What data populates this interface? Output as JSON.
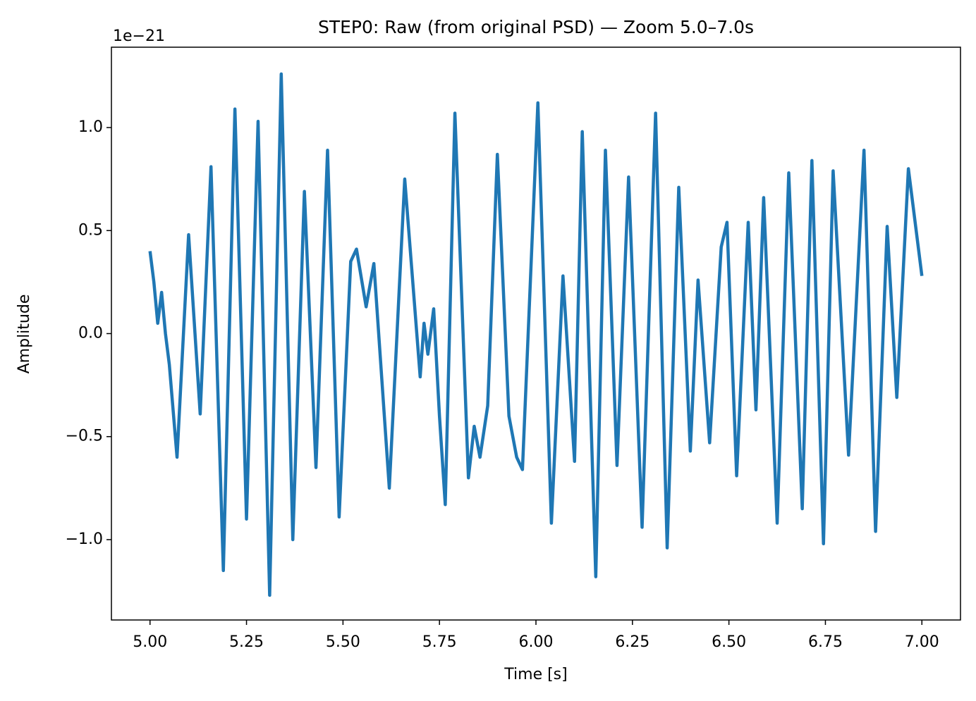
{
  "chart_data": {
    "type": "line",
    "title": "STEP0: Raw (from original PSD) — Zoom 5.0–7.0s",
    "xlabel": "Time [s]",
    "ylabel": "Amplitude",
    "y_offset_label": "1e−21",
    "color": "#1f77b4",
    "x": [
      5.0,
      5.01,
      5.02,
      5.03,
      5.04,
      5.05,
      5.07,
      5.1,
      5.13,
      5.158,
      5.19,
      5.22,
      5.25,
      5.28,
      5.31,
      5.34,
      5.37,
      5.4,
      5.43,
      5.46,
      5.49,
      5.52,
      5.535,
      5.56,
      5.58,
      5.62,
      5.66,
      5.7,
      5.71,
      5.72,
      5.735,
      5.75,
      5.765,
      5.79,
      5.825,
      5.84,
      5.855,
      5.875,
      5.9,
      5.93,
      5.95,
      5.965,
      6.005,
      6.04,
      6.07,
      6.1,
      6.12,
      6.155,
      6.18,
      6.21,
      6.24,
      6.275,
      6.31,
      6.34,
      6.37,
      6.4,
      6.42,
      6.45,
      6.48,
      6.495,
      6.52,
      6.55,
      6.57,
      6.59,
      6.625,
      6.655,
      6.69,
      6.715,
      6.745,
      6.77,
      6.81,
      6.85,
      6.88,
      6.91,
      6.935,
      6.965,
      7.0
    ],
    "values": [
      0.4,
      0.25,
      0.05,
      0.2,
      0.0,
      -0.15,
      -0.6,
      0.48,
      -0.39,
      0.81,
      -1.15,
      1.09,
      -0.9,
      1.03,
      -1.27,
      1.26,
      -1.0,
      0.69,
      -0.65,
      0.89,
      -0.89,
      0.35,
      0.41,
      0.13,
      0.34,
      -0.75,
      0.75,
      -0.21,
      0.05,
      -0.1,
      0.12,
      -0.4,
      -0.83,
      1.07,
      -0.7,
      -0.45,
      -0.6,
      -0.35,
      0.87,
      -0.4,
      -0.6,
      -0.66,
      1.12,
      -0.92,
      0.28,
      -0.62,
      0.98,
      -1.18,
      0.89,
      -0.64,
      0.76,
      -0.94,
      1.07,
      -1.04,
      0.71,
      -0.57,
      0.26,
      -0.53,
      0.42,
      0.54,
      -0.69,
      0.54,
      -0.37,
      0.66,
      -0.92,
      0.78,
      -0.85,
      0.84,
      -1.02,
      0.79,
      -0.59,
      0.89,
      -0.96,
      0.52,
      -0.31,
      0.8,
      0.28
    ],
    "xlim": [
      4.9,
      7.1
    ],
    "ylim": [
      -1.39,
      1.39
    ],
    "xticks": [
      {
        "value": 5.0,
        "label": "5.00"
      },
      5.25,
      {
        "value": 5.5,
        "label": "5.50"
      },
      5.75,
      {
        "value": 6.0,
        "label": "6.00"
      },
      6.25,
      {
        "value": 6.5,
        "label": "6.50"
      },
      6.75,
      {
        "value": 7.0,
        "label": "7.00"
      }
    ],
    "yticks": [
      {
        "value": -1.0,
        "label": "−1.0"
      },
      {
        "value": -0.5,
        "label": "−0.5"
      },
      {
        "value": 0.0,
        "label": "0.0"
      },
      0.5,
      {
        "value": 1.0,
        "label": "1.0"
      }
    ],
    "grid": false
  }
}
